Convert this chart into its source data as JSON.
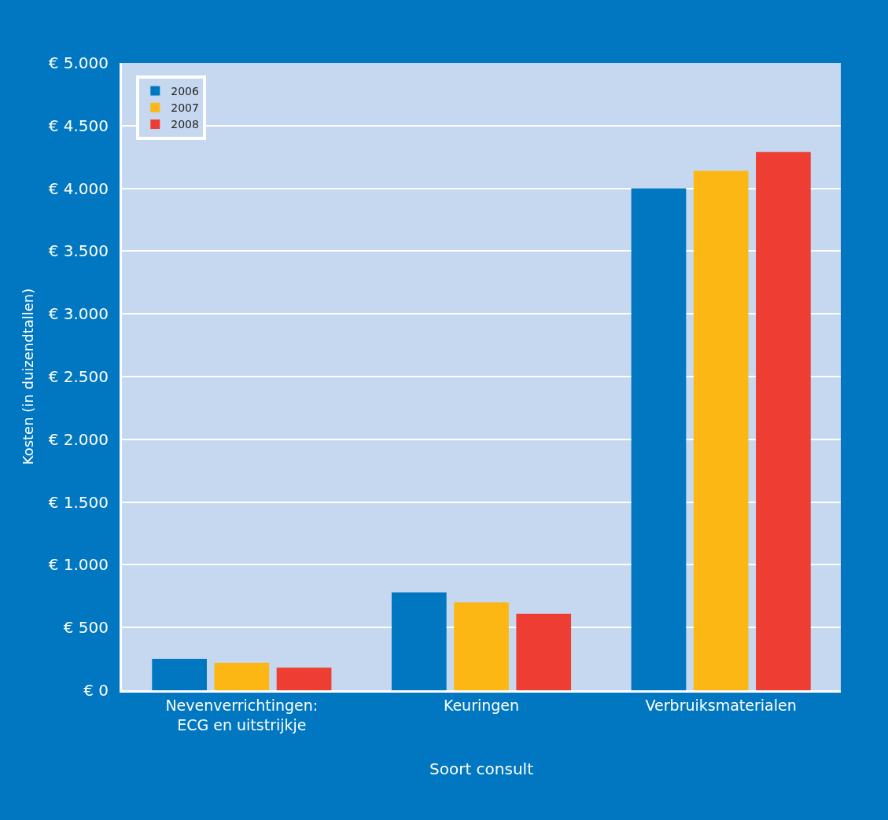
{
  "chart_data": {
    "type": "bar",
    "xlabel": "Soort consult",
    "ylabel": "Kosten (in duizendtallen)",
    "categories": [
      "Nevenverrichtingen:\nECG en uitstrijkje",
      "Keuringen",
      "Verbruiksmaterialen"
    ],
    "series": [
      {
        "name": "2006",
        "color": "#0077c0",
        "values": [
          250,
          780,
          4000
        ]
      },
      {
        "name": "2007",
        "color": "#fcb715",
        "values": [
          220,
          700,
          4140
        ]
      },
      {
        "name": "2008",
        "color": "#ee3d33",
        "values": [
          180,
          610,
          4290
        ]
      }
    ],
    "ylim": [
      0,
      5000
    ],
    "yticks": [
      {
        "value": 0,
        "label": "€ 0"
      },
      {
        "value": 500,
        "label": "€ 500"
      },
      {
        "value": 1000,
        "label": "€ 1.000"
      },
      {
        "value": 1500,
        "label": "€ 1.500"
      },
      {
        "value": 2000,
        "label": "€ 2.000"
      },
      {
        "value": 2500,
        "label": "€ 2.500"
      },
      {
        "value": 3000,
        "label": "€ 3.000"
      },
      {
        "value": 3500,
        "label": "€ 3.500"
      },
      {
        "value": 4000,
        "label": "€ 4.000"
      },
      {
        "value": 4500,
        "label": "€ 4.500"
      },
      {
        "value": 5000,
        "label": "€ 5.000"
      }
    ],
    "grid": "y",
    "legend": "top left"
  }
}
